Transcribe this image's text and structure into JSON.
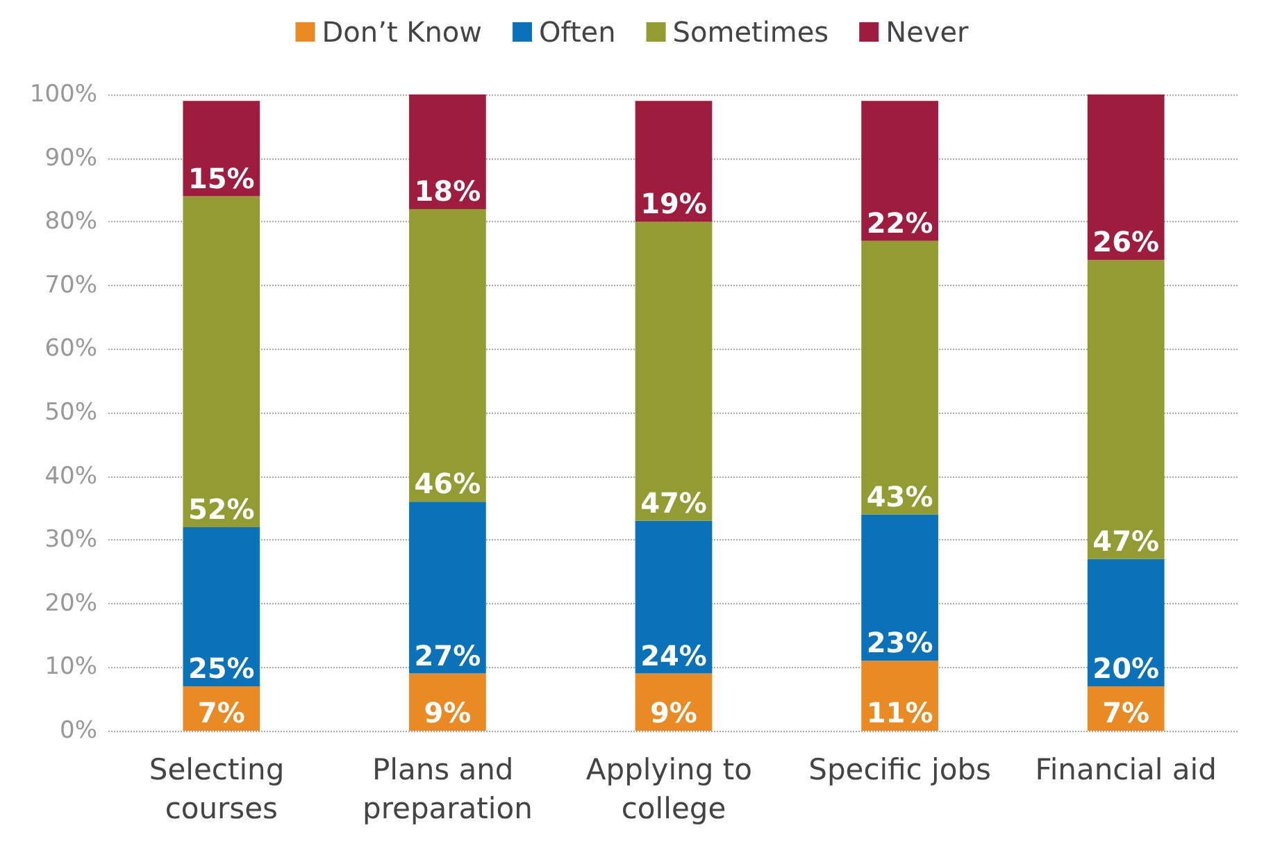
{
  "chart_data": {
    "type": "bar",
    "stacked": true,
    "legend": "top",
    "grid": "y",
    "categories": [
      "Selecting courses",
      "Plans and preparation",
      "Applying to college",
      "Specific jobs",
      "Financial aid"
    ],
    "series": [
      {
        "name": "Don’t Know",
        "color": "#e98a24",
        "values": [
          7,
          9,
          9,
          11,
          7
        ],
        "value_labels": [
          "7%",
          "9%",
          "9%",
          "11%",
          "7%"
        ]
      },
      {
        "name": "Often",
        "color": "#0b72b9",
        "values": [
          25,
          27,
          24,
          23,
          20
        ],
        "value_labels": [
          "25%",
          "27%",
          "24%",
          "23%",
          "20%"
        ]
      },
      {
        "name": "Sometimes",
        "color": "#939b33",
        "values": [
          52,
          46,
          47,
          43,
          47
        ],
        "value_labels": [
          "52%",
          "46%",
          "47%",
          "43%",
          "47%"
        ]
      },
      {
        "name": "Never",
        "color": "#9e1d3f",
        "values": [
          15,
          18,
          19,
          22,
          26
        ],
        "value_labels": [
          "15%",
          "18%",
          "19%",
          "22%",
          "26%"
        ]
      }
    ],
    "ylim": [
      0,
      100
    ],
    "yticks": [
      {
        "value": 0,
        "label": "0%"
      },
      {
        "value": 10,
        "label": "10%"
      },
      {
        "value": 20,
        "label": "20%"
      },
      {
        "value": 30,
        "label": "30%"
      },
      {
        "value": 40,
        "label": "40%"
      },
      {
        "value": 50,
        "label": "50%"
      },
      {
        "value": 60,
        "label": "60%"
      },
      {
        "value": 70,
        "label": "70%"
      },
      {
        "value": 80,
        "label": "80%"
      },
      {
        "value": 90,
        "label": "90%"
      },
      {
        "value": 100,
        "label": "100%"
      }
    ]
  }
}
